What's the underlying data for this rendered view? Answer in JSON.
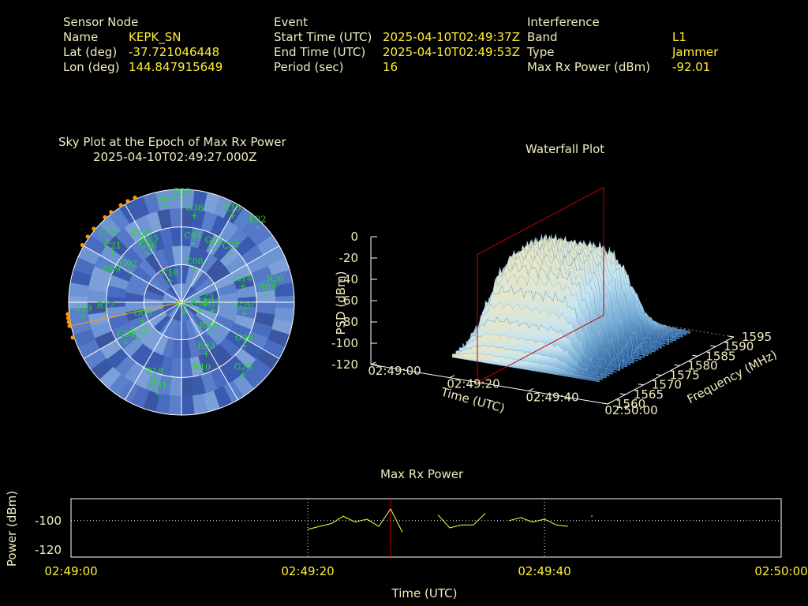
{
  "header": {
    "sensor": {
      "title": "Sensor Node",
      "name_label": "Name",
      "name": "KEPK_SN",
      "lat_label": "Lat (deg)",
      "lat": "-37.721046448",
      "lon_label": "Lon (deg)",
      "lon": "144.847915649"
    },
    "event": {
      "title": "Event",
      "start_label": "Start Time (UTC)",
      "start": "2025-04-10T02:49:37Z",
      "end_label": "End Time (UTC)",
      "end": "2025-04-10T02:49:53Z",
      "period_label": "Period (sec)",
      "period": "16"
    },
    "interference": {
      "title": "Interference",
      "band_label": "Band",
      "band": "L1",
      "type_label": "Type",
      "type": "Jammer",
      "power_label": "Max Rx Power (dBm)",
      "power": "-92.01"
    }
  },
  "colors": {
    "label": "#f0ebc0",
    "value": "#ffee33",
    "sat": "#22dd22",
    "accent": "#ff9900",
    "marker": "#cc0000",
    "line": "#ffff44"
  },
  "chart_data": [
    {
      "type": "scatter",
      "title": "Sky Plot at the Epoch of Max Rx Power",
      "subtitle": "2025-04-10T02:49:27.000Z",
      "coordinate_system": "polar (azimuth / elevation)",
      "satellites": [
        {
          "id": "R13",
          "az": 0,
          "el": 8
        },
        {
          "id": "G01",
          "az": 350,
          "el": 12
        },
        {
          "id": "C38",
          "az": 8,
          "el": 20
        },
        {
          "id": "E15",
          "az": 30,
          "el": 10
        },
        {
          "id": "E22",
          "az": 45,
          "el": 5
        },
        {
          "id": "C07",
          "az": 45,
          "el": 35
        },
        {
          "id": "G12",
          "az": 30,
          "el": 40
        },
        {
          "id": "C04",
          "az": 10,
          "el": 42
        },
        {
          "id": "C32",
          "az": 310,
          "el": 12
        },
        {
          "id": "C21",
          "az": 305,
          "el": 22
        },
        {
          "id": "E20",
          "az": 325,
          "el": 30
        },
        {
          "id": "E05",
          "az": 330,
          "el": 38
        },
        {
          "id": "G28",
          "az": 325,
          "el": 42
        },
        {
          "id": "C08",
          "az": 20,
          "el": 62
        },
        {
          "id": "C18",
          "az": 330,
          "el": 70
        },
        {
          "id": "G02",
          "az": 300,
          "el": 40
        },
        {
          "id": "C09",
          "az": 290,
          "el": 30
        },
        {
          "id": "G14",
          "az": 75,
          "el": 40
        },
        {
          "id": "R26",
          "az": 80,
          "el": 15
        },
        {
          "id": "R03",
          "az": 85,
          "el": 22
        },
        {
          "id": "C23",
          "az": 95,
          "el": 72
        },
        {
          "id": "G26",
          "az": 100,
          "el": 40
        },
        {
          "id": "R11",
          "az": 105,
          "el": 65
        },
        {
          "id": "R16",
          "az": 115,
          "el": 75
        },
        {
          "id": "R04",
          "az": 140,
          "el": 58
        },
        {
          "id": "C03",
          "az": 170,
          "el": 82
        },
        {
          "id": "G06",
          "az": 125,
          "el": 30
        },
        {
          "id": "E03",
          "az": 155,
          "el": 45
        },
        {
          "id": "G29",
          "az": 140,
          "el": 15
        },
        {
          "id": "R10",
          "az": 165,
          "el": 30
        },
        {
          "id": "R17",
          "az": 262,
          "el": 28
        },
        {
          "id": "G03",
          "az": 245,
          "el": 55
        },
        {
          "id": "C29",
          "az": 262,
          "el": 10
        },
        {
          "id": "E33",
          "az": 230,
          "el": 45
        },
        {
          "id": "G04",
          "az": 235,
          "el": 35
        },
        {
          "id": "R18",
          "az": 200,
          "el": 25
        },
        {
          "id": "G31",
          "az": 195,
          "el": 15
        }
      ],
      "jammer_azimuths": [
        300,
        305,
        310,
        318,
        322,
        328,
        332,
        336,
        258,
        260,
        262,
        264,
        252
      ]
    },
    {
      "type": "surface",
      "title": "Waterfall Plot",
      "xlabel": "Time (UTC)",
      "ylabel": "Frequency (MHz)",
      "zlabel": "PSD (dBm)",
      "x_ticks": [
        "02:49:00",
        "02:49:20",
        "02:49:40",
        "02:50:00"
      ],
      "y_ticks": [
        "1560",
        "1565",
        "1570",
        "1575",
        "1580",
        "1585",
        "1590",
        "1595"
      ],
      "z_ticks": [
        "0",
        "-20",
        "-40",
        "-60",
        "-80",
        "-100",
        "-120"
      ],
      "zlim": [
        -120,
        0
      ],
      "marker_time": "02:49:27"
    },
    {
      "type": "line",
      "title": "Max Rx Power",
      "xlabel": "Time (UTC)",
      "ylabel": "Power (dBm)",
      "x_ticks": [
        "02:49:00",
        "02:49:20",
        "02:49:40",
        "02:50:00"
      ],
      "y_ticks": [
        "-100",
        "-120"
      ],
      "ylim": [
        -125,
        -85
      ],
      "xlim_seconds": [
        0,
        60
      ],
      "marker_time": "02:49:27",
      "segments": [
        [
          [
            20,
            -106
          ],
          [
            21,
            -104
          ],
          [
            22,
            -102
          ],
          [
            23,
            -97
          ],
          [
            24,
            -101
          ],
          [
            25,
            -99
          ],
          [
            26,
            -104
          ],
          [
            27,
            -92
          ],
          [
            28,
            -108
          ]
        ],
        [
          [
            31,
            -96
          ],
          [
            32,
            -105
          ],
          [
            33,
            -103
          ],
          [
            34,
            -103
          ],
          [
            35,
            -95
          ]
        ],
        [
          [
            37,
            -100
          ],
          [
            38,
            -98
          ],
          [
            39,
            -101
          ],
          [
            40,
            -99
          ],
          [
            41,
            -103
          ],
          [
            42,
            -104
          ]
        ],
        [
          [
            44,
            -97
          ]
        ]
      ]
    }
  ]
}
